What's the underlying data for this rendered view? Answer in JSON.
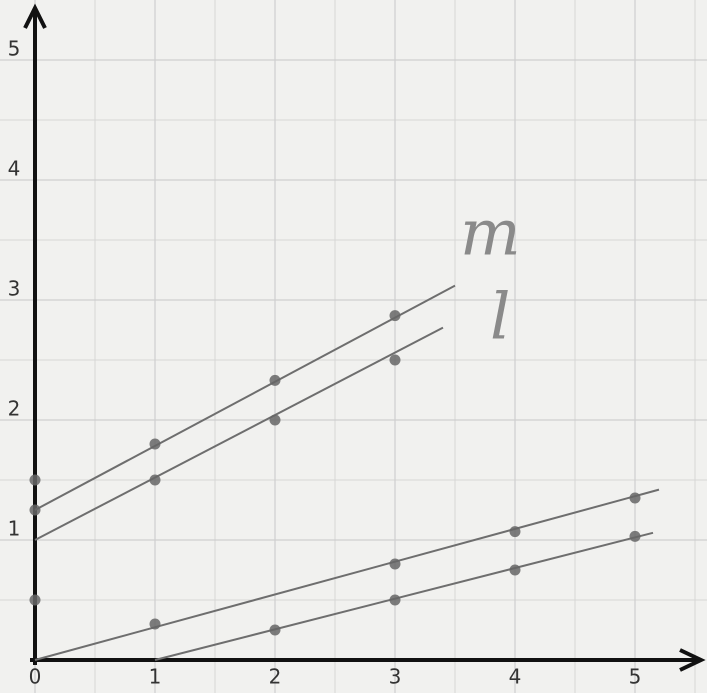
{
  "chart_data": {
    "type": "line",
    "xlim": [
      0,
      5.5
    ],
    "ylim": [
      0,
      5.4
    ],
    "xticks": [
      0,
      1,
      2,
      3,
      4,
      5
    ],
    "yticks": [
      1,
      2,
      3,
      4,
      5
    ],
    "grid": true,
    "annotations": [
      "m",
      "l"
    ],
    "series": [
      {
        "mode": "line",
        "color": "#6e6e6e",
        "x": [
          0,
          3.5
        ],
        "values": [
          1.25,
          3.12
        ]
      },
      {
        "mode": "line",
        "color": "#6e6e6e",
        "x": [
          0,
          3.4
        ],
        "values": [
          1,
          2.77
        ]
      },
      {
        "mode": "line",
        "color": "#6e6e6e",
        "x": [
          0,
          5.2
        ],
        "values": [
          0,
          1.42
        ]
      },
      {
        "mode": "line",
        "color": "#6e6e6e",
        "x": [
          1,
          5.15
        ],
        "values": [
          0,
          1.06
        ]
      },
      {
        "mode": "markers",
        "color": "#666666",
        "x": [
          0,
          0,
          0,
          1,
          1,
          2,
          2,
          3,
          3,
          1,
          3,
          4,
          5,
          2,
          3,
          4,
          5
        ],
        "values": [
          1.5,
          1.25,
          0.5,
          1.8,
          1.5,
          2.33,
          2.0,
          2.87,
          2.5,
          0.3,
          0.8,
          1.07,
          1.35,
          0.25,
          0.5,
          0.75,
          1.03
        ]
      }
    ]
  }
}
